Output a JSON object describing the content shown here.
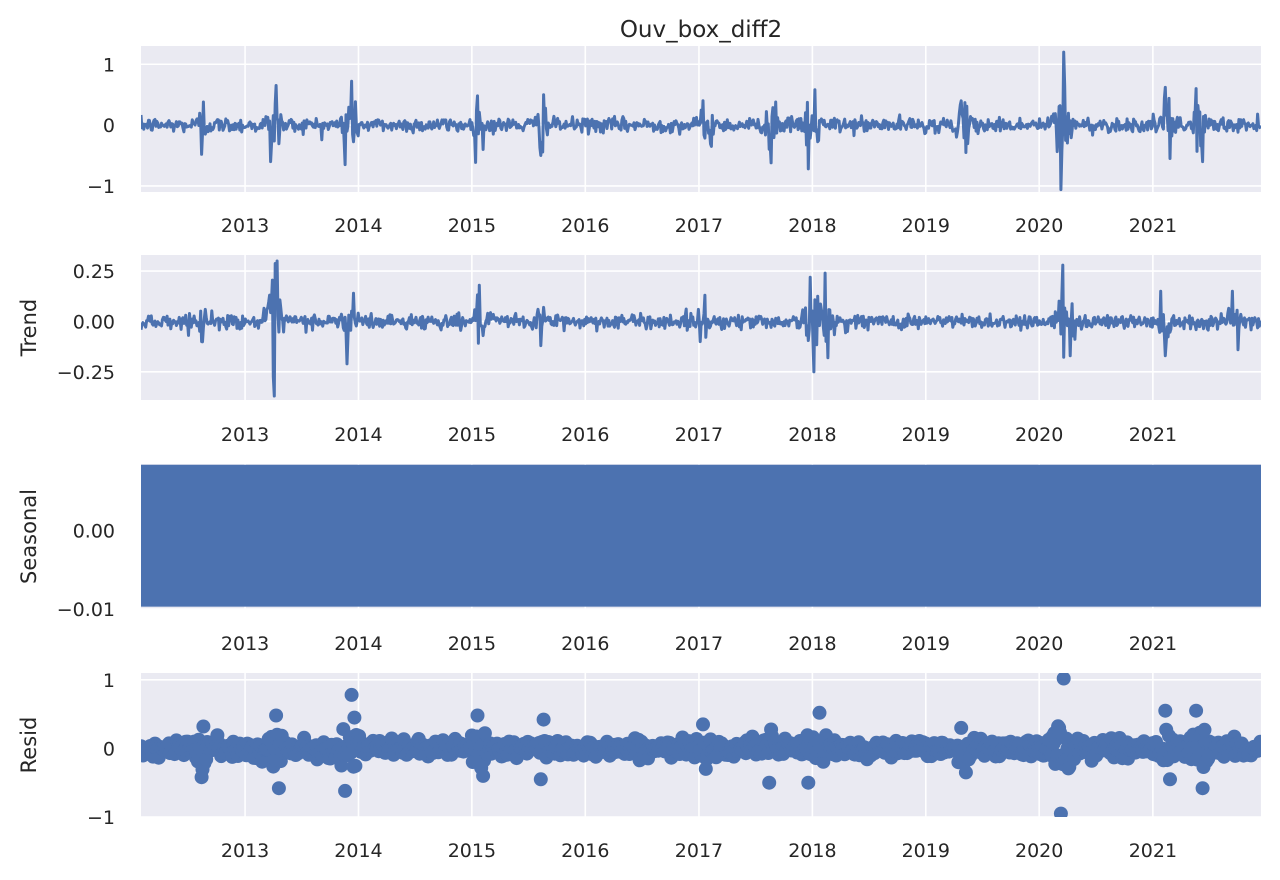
{
  "colors": {
    "background": "#eaeaf2",
    "series": "#4c72b0",
    "grid": "#ffffff",
    "text": "#262626"
  },
  "chart_data": [
    {
      "type": "line",
      "title": "Ouv_box_diff2",
      "ylabel": "",
      "xlim": [
        "2012-02-01",
        "2021-12-15"
      ],
      "ylim": [
        -1.1,
        1.3
      ],
      "x_ticks": [
        "2013",
        "2014",
        "2015",
        "2016",
        "2017",
        "2018",
        "2019",
        "2020",
        "2021"
      ],
      "y_ticks": [
        {
          "value": 1,
          "label": "1"
        },
        {
          "value": 0,
          "label": "0"
        },
        {
          "value": -1,
          "label": "−1"
        }
      ],
      "grid": true,
      "series": [
        {
          "base_amplitude": 0.06,
          "bursts": [
            {
              "date": "2012-08-20",
              "value": 0.38
            },
            {
              "date": "2012-08-15",
              "value": -0.48
            },
            {
              "date": "2013-04-10",
              "value": 0.65
            },
            {
              "date": "2013-03-25",
              "value": -0.6
            },
            {
              "date": "2013-12-10",
              "value": 0.72
            },
            {
              "date": "2013-11-20",
              "value": -0.65
            },
            {
              "date": "2015-01-20",
              "value": 0.48
            },
            {
              "date": "2015-02-05",
              "value": -0.4
            },
            {
              "date": "2015-08-20",
              "value": 0.5
            },
            {
              "date": "2015-08-10",
              "value": -0.5
            },
            {
              "date": "2017-01-15",
              "value": 0.4
            },
            {
              "date": "2017-02-10",
              "value": -0.35
            },
            {
              "date": "2017-09-05",
              "value": 0.38
            },
            {
              "date": "2017-08-20",
              "value": -0.62
            },
            {
              "date": "2018-01-10",
              "value": 0.58
            },
            {
              "date": "2017-12-20",
              "value": -0.72
            },
            {
              "date": "2019-04-25",
              "value": 0.4
            },
            {
              "date": "2019-05-10",
              "value": -0.45
            },
            {
              "date": "2020-03-20",
              "value": 1.2
            },
            {
              "date": "2020-03-10",
              "value": -1.06
            },
            {
              "date": "2021-02-10",
              "value": 0.62
            },
            {
              "date": "2021-02-25",
              "value": -0.55
            },
            {
              "date": "2021-05-20",
              "value": 0.6
            },
            {
              "date": "2021-06-10",
              "value": -0.6
            }
          ]
        }
      ]
    },
    {
      "type": "line",
      "title": "",
      "ylabel": "Trend",
      "xlim": [
        "2012-02-01",
        "2021-12-15"
      ],
      "ylim": [
        -0.39,
        0.33
      ],
      "x_ticks": [
        "2013",
        "2014",
        "2015",
        "2016",
        "2017",
        "2018",
        "2019",
        "2020",
        "2021"
      ],
      "y_ticks": [
        {
          "value": 0.25,
          "label": "0.25"
        },
        {
          "value": 0,
          "label": "0.00"
        },
        {
          "value": -0.25,
          "label": "−0.25"
        }
      ],
      "grid": true,
      "series": [
        {
          "base_amplitude": 0.018,
          "bursts": [
            {
              "date": "2012-08-25",
              "value": 0.06
            },
            {
              "date": "2012-08-15",
              "value": -0.1
            },
            {
              "date": "2013-04-15",
              "value": 0.3
            },
            {
              "date": "2013-04-05",
              "value": -0.37
            },
            {
              "date": "2013-12-15",
              "value": 0.14
            },
            {
              "date": "2013-11-25",
              "value": -0.21
            },
            {
              "date": "2015-01-25",
              "value": 0.18
            },
            {
              "date": "2015-02-05",
              "value": -0.07
            },
            {
              "date": "2015-08-20",
              "value": 0.07
            },
            {
              "date": "2015-08-10",
              "value": -0.12
            },
            {
              "date": "2017-01-20",
              "value": 0.13
            },
            {
              "date": "2017-01-05",
              "value": -0.1
            },
            {
              "date": "2017-12-25",
              "value": 0.22
            },
            {
              "date": "2018-01-05",
              "value": -0.25
            },
            {
              "date": "2018-02-10",
              "value": 0.24
            },
            {
              "date": "2018-02-20",
              "value": -0.18
            },
            {
              "date": "2020-03-18",
              "value": 0.28
            },
            {
              "date": "2020-04-10",
              "value": -0.17
            },
            {
              "date": "2021-01-25",
              "value": 0.15
            },
            {
              "date": "2021-02-10",
              "value": -0.17
            },
            {
              "date": "2021-09-15",
              "value": 0.15
            },
            {
              "date": "2021-10-01",
              "value": -0.14
            }
          ]
        }
      ]
    },
    {
      "type": "area",
      "title": "",
      "ylabel": "Seasonal",
      "xlim": [
        "2012-02-01",
        "2021-12-15"
      ],
      "ylim": [
        -0.01,
        0.0085
      ],
      "x_ticks": [
        "2013",
        "2014",
        "2015",
        "2016",
        "2017",
        "2018",
        "2019",
        "2020",
        "2021"
      ],
      "y_ticks": [
        {
          "value": 0,
          "label": "0.00"
        },
        {
          "value": -0.01,
          "label": "−0.01"
        }
      ],
      "grid": true,
      "series": [
        {
          "min": -0.0097,
          "max": 0.0084
        }
      ]
    },
    {
      "type": "scatter",
      "title": "",
      "ylabel": "Resid",
      "xlim": [
        "2012-02-01",
        "2021-12-15"
      ],
      "ylim": [
        -1.0,
        1.1
      ],
      "x_ticks": [
        "2013",
        "2014",
        "2015",
        "2016",
        "2017",
        "2018",
        "2019",
        "2020",
        "2021"
      ],
      "y_ticks": [
        {
          "value": 1,
          "label": "1"
        },
        {
          "value": 0,
          "label": "0"
        },
        {
          "value": -1,
          "label": "−1"
        }
      ],
      "grid": true,
      "series": [
        {
          "base_amplitude": 0.06,
          "bursts": [
            {
              "date": "2012-08-20",
              "value": 0.32
            },
            {
              "date": "2012-08-15",
              "value": -0.42
            },
            {
              "date": "2013-04-10",
              "value": 0.48
            },
            {
              "date": "2013-04-20",
              "value": -0.58
            },
            {
              "date": "2013-12-10",
              "value": 0.78
            },
            {
              "date": "2013-11-20",
              "value": -0.62
            },
            {
              "date": "2015-01-20",
              "value": 0.48
            },
            {
              "date": "2015-02-05",
              "value": -0.4
            },
            {
              "date": "2015-08-20",
              "value": 0.42
            },
            {
              "date": "2015-08-10",
              "value": -0.45
            },
            {
              "date": "2017-01-15",
              "value": 0.35
            },
            {
              "date": "2017-08-15",
              "value": -0.5
            },
            {
              "date": "2018-01-25",
              "value": 0.52
            },
            {
              "date": "2017-12-20",
              "value": -0.5
            },
            {
              "date": "2019-04-25",
              "value": 0.3
            },
            {
              "date": "2019-05-10",
              "value": -0.35
            },
            {
              "date": "2020-03-20",
              "value": 1.02
            },
            {
              "date": "2020-03-10",
              "value": -0.95
            },
            {
              "date": "2021-02-10",
              "value": 0.55
            },
            {
              "date": "2021-02-25",
              "value": -0.45
            },
            {
              "date": "2021-05-20",
              "value": 0.55
            },
            {
              "date": "2021-06-10",
              "value": -0.58
            }
          ]
        }
      ]
    }
  ]
}
